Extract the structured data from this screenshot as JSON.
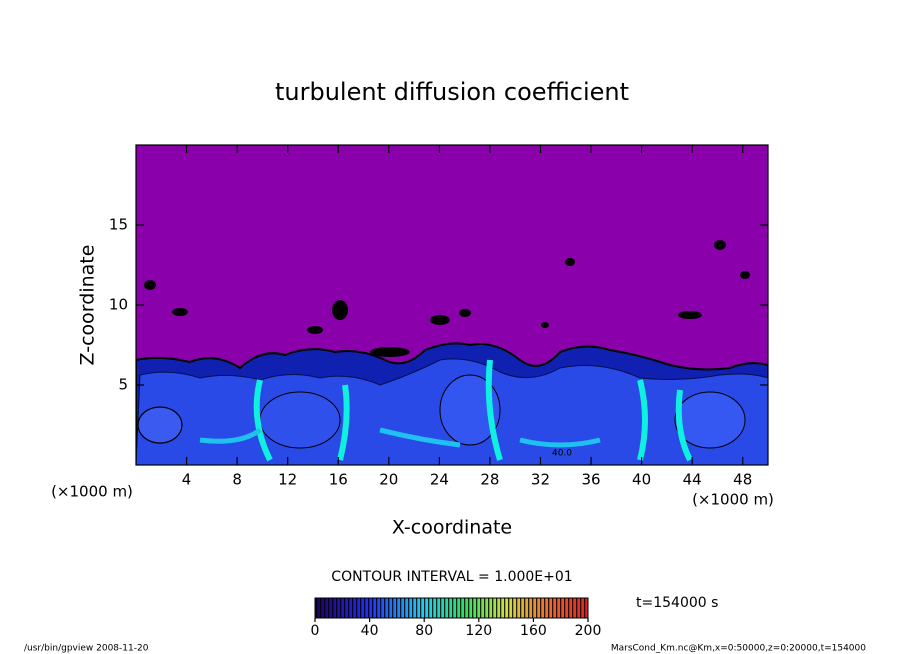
{
  "chart_data": {
    "type": "contour",
    "title": "turbulent diffusion coefficient",
    "x_label": "X-coordinate",
    "y_label": "Z-coordinate",
    "x_unit": "(×1000 m)",
    "xlim": [
      0,
      50
    ],
    "xticks": [
      4,
      8,
      12,
      16,
      20,
      24,
      28,
      32,
      36,
      40,
      44,
      48
    ],
    "ylim": [
      0,
      20
    ],
    "yticks": [
      5,
      10,
      15
    ],
    "contour_interval": "CONTOUR INTERVAL = 1.000E+01",
    "contour_label": "40.0",
    "colorbar_lim": [
      0,
      200
    ],
    "colorbar_ticks": [
      0,
      40,
      80,
      120,
      160,
      200
    ],
    "time_label": "t=154000 s",
    "footer_left": "/usr/bin/gpview   2008-11-20",
    "footer_right": "MarsCond_Km.nc@Km,x=0:50000,z=0:20000,t=154000"
  }
}
